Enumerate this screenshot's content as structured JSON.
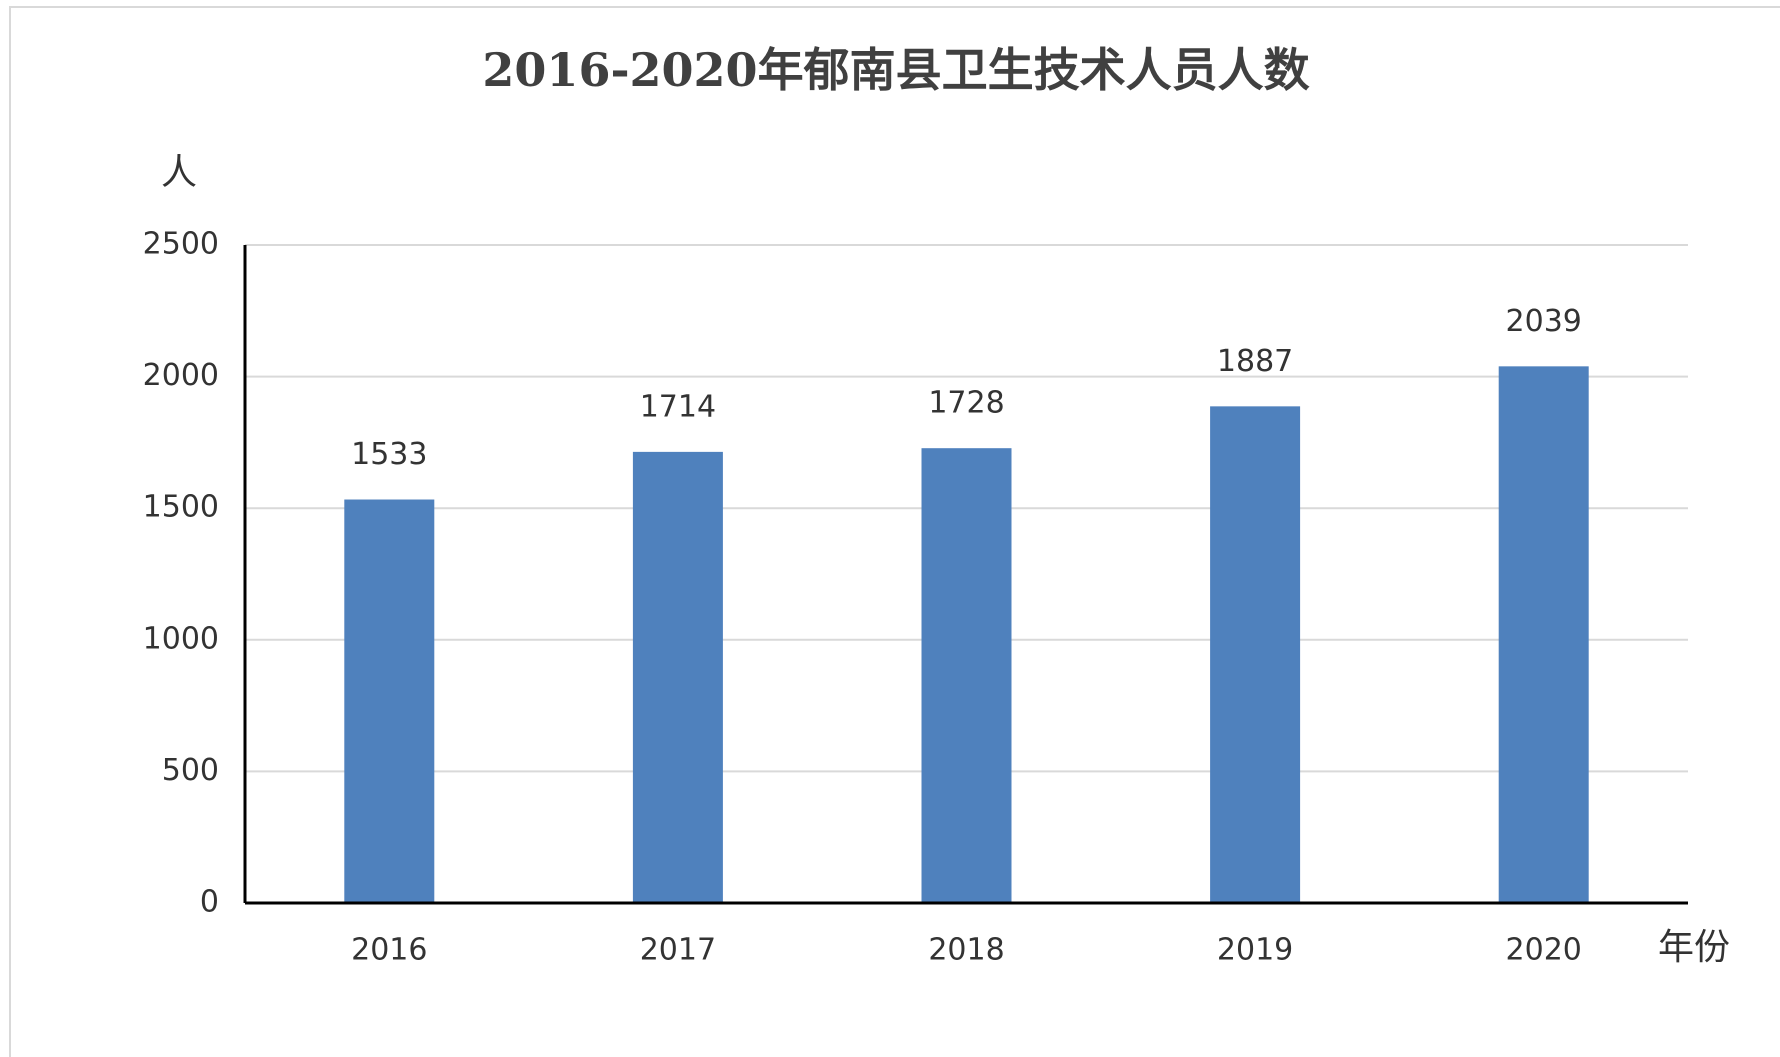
{
  "chart_data": {
    "type": "bar",
    "title": "2016-2020年郁南县卫生技术人员人数",
    "y_label": "人",
    "x_label": "年份",
    "categories": [
      "2016",
      "2017",
      "2018",
      "2019",
      "2020"
    ],
    "values": [
      1533,
      1714,
      1728,
      1887,
      2039
    ],
    "color": "#4f81bd",
    "ylim": [
      0,
      2500
    ],
    "yticks": [
      0,
      500,
      1000,
      1500,
      2000,
      2500
    ],
    "grid": true
  }
}
